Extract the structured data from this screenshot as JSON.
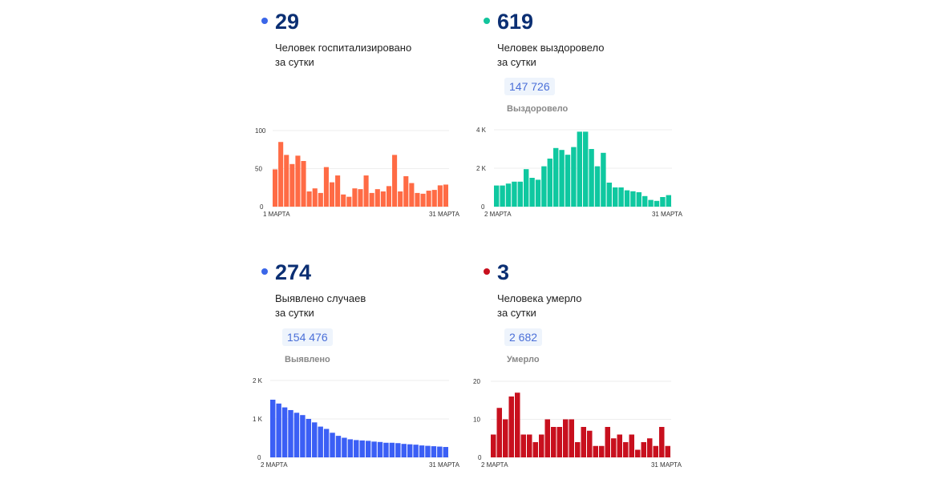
{
  "cards": [
    {
      "number": "29",
      "label1": "Человек госпитализировано",
      "label2": "за сутки",
      "dot_color": "#3a66e8"
    },
    {
      "number": "619",
      "label1": "Человек выздоровело",
      "label2": "за сутки",
      "total": "147 726",
      "total_label": "Выздоровело",
      "dot_color": "#12c49c"
    },
    {
      "number": "274",
      "label1": "Выявлено случаев",
      "label2": "за сутки",
      "total": "154 476",
      "total_label": "Выявлено",
      "dot_color": "#3a66e8"
    },
    {
      "number": "3",
      "label1": "Человека умерло",
      "label2": "за сутки",
      "total": "2 682",
      "total_label": "Умерло",
      "dot_color": "#c8101e"
    }
  ],
  "chart_data": [
    {
      "type": "bar",
      "color": "#ff6b45",
      "ylim": [
        0,
        100
      ],
      "yticks": [
        0,
        50,
        100
      ],
      "ytick_labels": [
        "0",
        "50",
        "100"
      ],
      "x_start": "1 МАРТА",
      "x_end": "31 МАРТА",
      "grid": true,
      "values": [
        49,
        85,
        68,
        56,
        67,
        60,
        20,
        24,
        18,
        52,
        32,
        41,
        16,
        13,
        24,
        23,
        41,
        18,
        23,
        20,
        27,
        68,
        20,
        40,
        31,
        18,
        17,
        21,
        22,
        28,
        29
      ]
    },
    {
      "type": "bar",
      "color": "#0fc8a0",
      "ylim": [
        0,
        4000
      ],
      "yticks": [
        0,
        2000,
        4000
      ],
      "ytick_labels": [
        "0",
        "2 K",
        "4 K"
      ],
      "x_start": "2 МАРТА",
      "x_end": "31 МАРТА",
      "grid": true,
      "values": [
        1100,
        1100,
        1200,
        1300,
        1300,
        1950,
        1500,
        1400,
        2100,
        2500,
        3050,
        2950,
        2700,
        3100,
        3900,
        3900,
        3000,
        2100,
        2800,
        1250,
        1000,
        1000,
        850,
        800,
        750,
        550,
        350,
        300,
        500,
        600
      ]
    },
    {
      "type": "bar",
      "color": "#3b5ff5",
      "ylim": [
        0,
        2000
      ],
      "yticks": [
        0,
        1000,
        2000
      ],
      "ytick_labels": [
        "0",
        "1 K",
        "2 K"
      ],
      "x_start": "2 МАРТА",
      "x_end": "31 МАРТА",
      "grid": true,
      "values": [
        1500,
        1400,
        1300,
        1230,
        1160,
        1100,
        1000,
        910,
        800,
        740,
        640,
        560,
        510,
        470,
        450,
        440,
        430,
        410,
        400,
        380,
        380,
        370,
        350,
        340,
        330,
        310,
        300,
        290,
        280,
        270
      ]
    },
    {
      "type": "bar",
      "color": "#c8101e",
      "ylim": [
        0,
        20
      ],
      "yticks": [
        0,
        10,
        20
      ],
      "ytick_labels": [
        "0",
        "10",
        "20"
      ],
      "x_start": "2 МАРТА",
      "x_end": "31 МАРТА",
      "grid": true,
      "values": [
        6,
        13,
        10,
        16,
        17,
        6,
        6,
        4,
        6,
        10,
        8,
        8,
        10,
        10,
        4,
        8,
        7,
        3,
        3,
        8,
        5,
        6,
        4,
        6,
        2,
        4,
        5,
        3,
        8,
        3
      ]
    }
  ]
}
